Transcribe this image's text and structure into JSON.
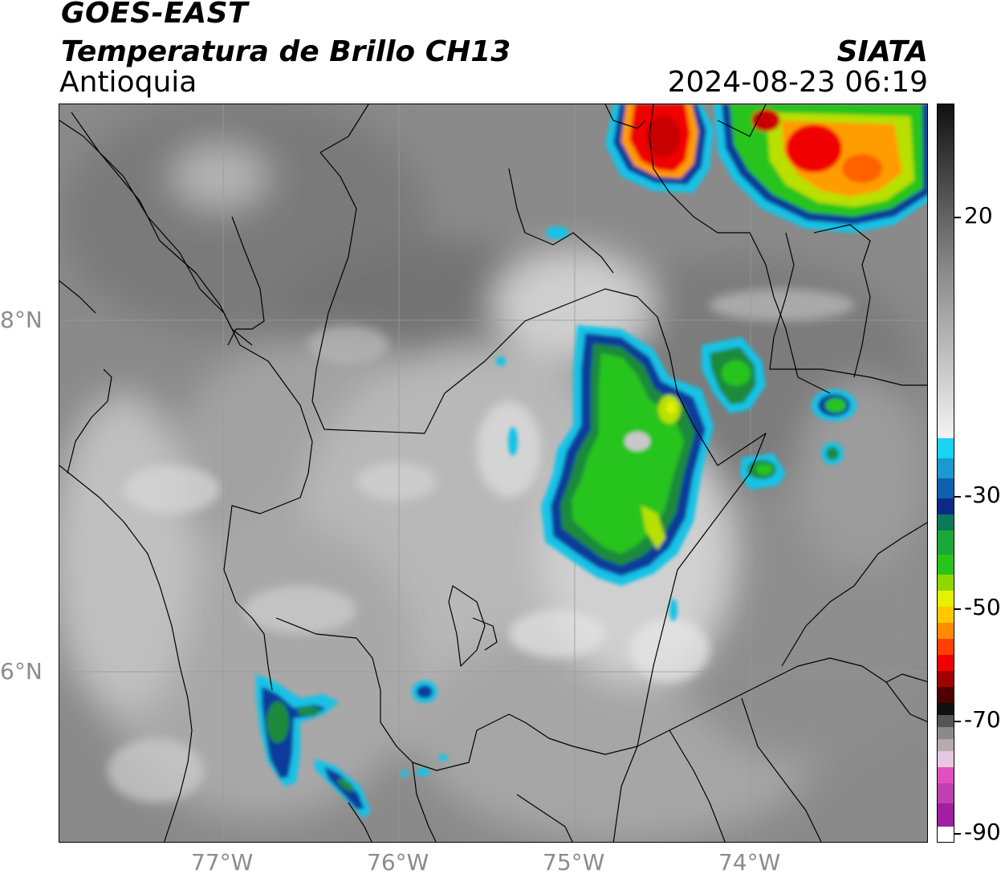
{
  "header": {
    "satellite": "GOES-EAST",
    "product": "Temperatura de Brillo CH13",
    "region": "Antioquia",
    "organization": "SIATA",
    "timestamp": "2024-08-23 06:19"
  },
  "map": {
    "extent": {
      "lon_min": -77.95,
      "lon_max": -72.9,
      "lat_min": 4.95,
      "lat_max": 9.2
    },
    "lat_lines": [
      {
        "value": 8,
        "label": "8°N"
      },
      {
        "value": 6,
        "label": "6°N"
      }
    ],
    "lon_lines": [
      {
        "value": -77,
        "label": "77°W"
      },
      {
        "value": -76,
        "label": "76°W"
      },
      {
        "value": -75,
        "label": "75°W"
      },
      {
        "value": -74,
        "label": "74°W"
      }
    ],
    "gridlines": true,
    "storm_cells": [
      {
        "name": "cell-central-antioquia",
        "lon": -74.7,
        "lat": 7.2,
        "intensity": "green-yellow"
      },
      {
        "name": "cell-northeast-red",
        "lon": -74.5,
        "lat": 9.0,
        "intensity": "red"
      },
      {
        "name": "cell-northeast-2",
        "lon": -73.6,
        "lat": 8.9,
        "intensity": "red-yellow"
      },
      {
        "name": "cell-southwest",
        "lon": -76.6,
        "lat": 5.6,
        "intensity": "blue-green"
      },
      {
        "name": "cell-east-small",
        "lon": -73.5,
        "lat": 7.6,
        "intensity": "green"
      }
    ]
  },
  "colorbar": {
    "min": -90,
    "max": 40,
    "ticks": [
      {
        "value": 20,
        "label": "20"
      },
      {
        "value": -30,
        "label": "-30"
      },
      {
        "value": -50,
        "label": "-50"
      },
      {
        "value": -70,
        "label": "-70"
      },
      {
        "value": -90,
        "label": "-90"
      }
    ]
  },
  "colors": {
    "cloud_cyan": "#19c3e6",
    "cloud_blue": "#103a9a",
    "cloud_green": "#28c41c",
    "cloud_yellow": "#e6f000",
    "cloud_orange": "#ff9c00",
    "cloud_red": "#f00000",
    "cold_purple": "#a020a0",
    "cold_magenta": "#e050c0",
    "cold_pink": "#e8c8e0"
  }
}
